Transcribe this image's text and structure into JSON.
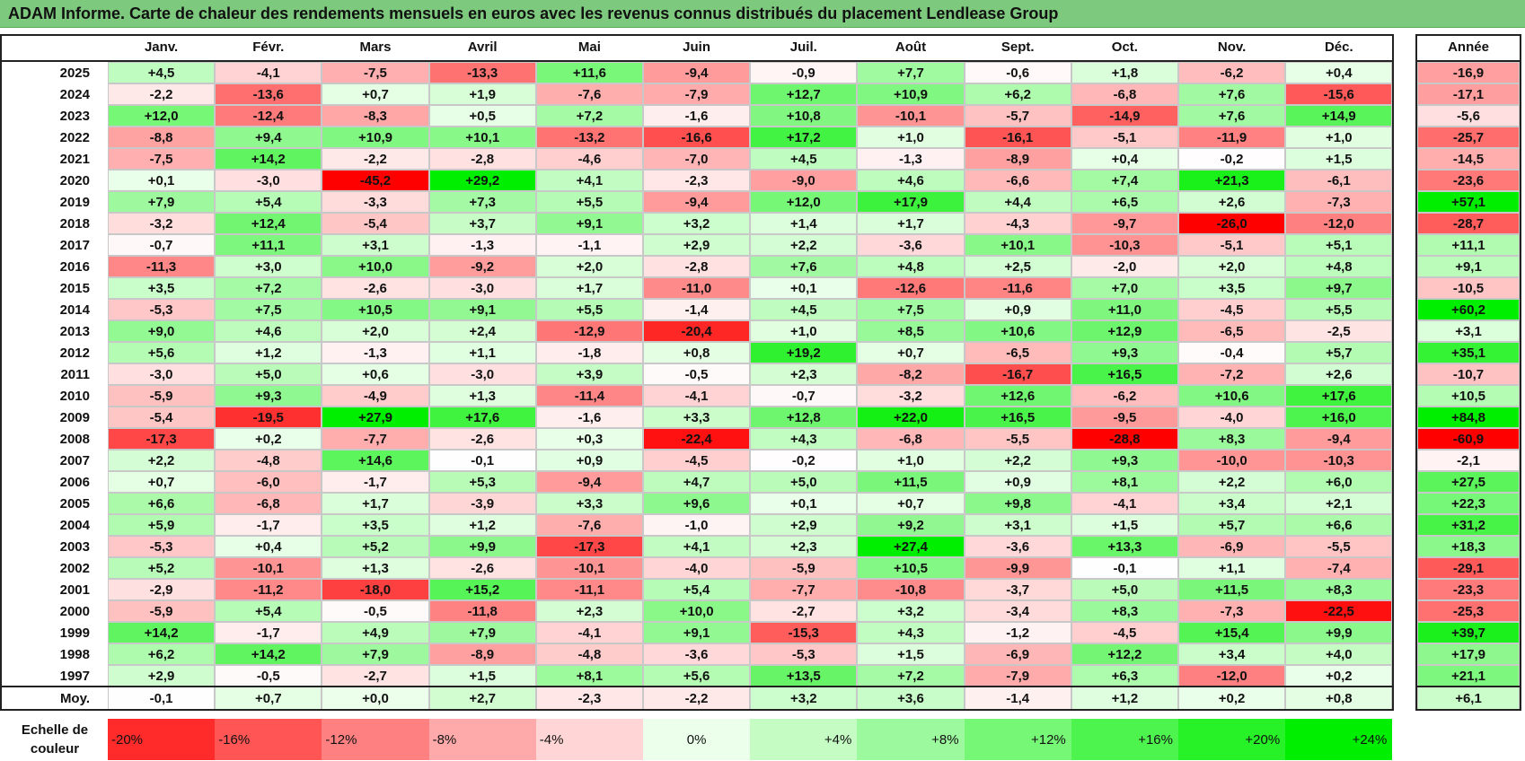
{
  "title": "ADAM Informe. Carte de chaleur des rendements mensuels en euros avec les revenus connus distribués du placement Lendlease Group",
  "colors": {
    "title_bg": "#7dc97d",
    "negative_max": "#ff0000",
    "neutral": "#ffffff",
    "positive_max": "#00ee00"
  },
  "chart_data": {
    "type": "heatmap",
    "title": "ADAM Informe. Carte de chaleur des rendements mensuels en euros avec les revenus connus distribués du placement Lendlease Group",
    "months": [
      "Janv.",
      "Févr.",
      "Mars",
      "Avril",
      "Mai",
      "Juin",
      "Juil.",
      "Août",
      "Sept.",
      "Oct.",
      "Nov.",
      "Déc."
    ],
    "year_header": "Année",
    "rows": [
      {
        "year": "2025",
        "values": [
          "+4,5",
          "-4,1",
          "-7,5",
          "-13,3",
          "+11,6",
          "-9,4",
          "-0,9",
          "+7,7",
          "-0,6",
          "+1,8",
          "-6,2",
          "+0,4"
        ],
        "annual": "-16,9"
      },
      {
        "year": "2024",
        "values": [
          "-2,2",
          "-13,6",
          "+0,7",
          "+1,9",
          "-7,6",
          "-7,9",
          "+12,7",
          "+10,9",
          "+6,2",
          "-6,8",
          "+7,6",
          "-15,6"
        ],
        "annual": "-17,1"
      },
      {
        "year": "2023",
        "values": [
          "+12,0",
          "-12,4",
          "-8,3",
          "+0,5",
          "+7,2",
          "-1,6",
          "+10,8",
          "-10,1",
          "-5,7",
          "-14,9",
          "+7,6",
          "+14,9"
        ],
        "annual": "-5,6"
      },
      {
        "year": "2022",
        "values": [
          "-8,8",
          "+9,4",
          "+10,9",
          "+10,1",
          "-13,2",
          "-16,6",
          "+17,2",
          "+1,0",
          "-16,1",
          "-5,1",
          "-11,9",
          "+1,0"
        ],
        "annual": "-25,7"
      },
      {
        "year": "2021",
        "values": [
          "-7,5",
          "+14,2",
          "-2,2",
          "-2,8",
          "-4,6",
          "-7,0",
          "+4,5",
          "-1,3",
          "-8,9",
          "+0,4",
          "-0,2",
          "+1,5"
        ],
        "annual": "-14,5"
      },
      {
        "year": "2020",
        "values": [
          "+0,1",
          "-3,0",
          "-45,2",
          "+29,2",
          "+4,1",
          "-2,3",
          "-9,0",
          "+4,6",
          "-6,6",
          "+7,4",
          "+21,3",
          "-6,1"
        ],
        "annual": "-23,6"
      },
      {
        "year": "2019",
        "values": [
          "+7,9",
          "+5,4",
          "-3,3",
          "+7,3",
          "+5,5",
          "-9,4",
          "+12,0",
          "+17,9",
          "+4,4",
          "+6,5",
          "+2,6",
          "-7,3"
        ],
        "annual": "+57,1"
      },
      {
        "year": "2018",
        "values": [
          "-3,2",
          "+12,4",
          "-5,4",
          "+3,7",
          "+9,1",
          "+3,2",
          "+1,4",
          "+1,7",
          "-4,3",
          "-9,7",
          "-26,0",
          "-12,0"
        ],
        "annual": "-28,7"
      },
      {
        "year": "2017",
        "values": [
          "-0,7",
          "+11,1",
          "+3,1",
          "-1,3",
          "-1,1",
          "+2,9",
          "+2,2",
          "-3,6",
          "+10,1",
          "-10,3",
          "-5,1",
          "+5,1"
        ],
        "annual": "+11,1"
      },
      {
        "year": "2016",
        "values": [
          "-11,3",
          "+3,0",
          "+10,0",
          "-9,2",
          "+2,0",
          "-2,8",
          "+7,6",
          "+4,8",
          "+2,5",
          "-2,0",
          "+2,0",
          "+4,8"
        ],
        "annual": "+9,1"
      },
      {
        "year": "2015",
        "values": [
          "+3,5",
          "+7,2",
          "-2,6",
          "-3,0",
          "+1,7",
          "-11,0",
          "+0,1",
          "-12,6",
          "-11,6",
          "+7,0",
          "+3,5",
          "+9,7"
        ],
        "annual": "-10,5"
      },
      {
        "year": "2014",
        "values": [
          "-5,3",
          "+7,5",
          "+10,5",
          "+9,1",
          "+5,5",
          "-1,4",
          "+4,5",
          "+7,5",
          "+0,9",
          "+11,0",
          "-4,5",
          "+5,5"
        ],
        "annual": "+60,2"
      },
      {
        "year": "2013",
        "values": [
          "+9,0",
          "+4,6",
          "+2,0",
          "+2,4",
          "-12,9",
          "-20,4",
          "+1,0",
          "+8,5",
          "+10,6",
          "+12,9",
          "-6,5",
          "-2,5"
        ],
        "annual": "+3,1"
      },
      {
        "year": "2012",
        "values": [
          "+5,6",
          "+1,2",
          "-1,3",
          "+1,1",
          "-1,8",
          "+0,8",
          "+19,2",
          "+0,7",
          "-6,5",
          "+9,3",
          "-0,4",
          "+5,7"
        ],
        "annual": "+35,1"
      },
      {
        "year": "2011",
        "values": [
          "-3,0",
          "+5,0",
          "+0,6",
          "-3,0",
          "+3,9",
          "-0,5",
          "+2,3",
          "-8,2",
          "-16,7",
          "+16,5",
          "-7,2",
          "+2,6"
        ],
        "annual": "-10,7"
      },
      {
        "year": "2010",
        "values": [
          "-5,9",
          "+9,3",
          "-4,9",
          "+1,3",
          "-11,4",
          "-4,1",
          "-0,7",
          "-3,2",
          "+12,6",
          "-6,2",
          "+10,6",
          "+17,6"
        ],
        "annual": "+10,5"
      },
      {
        "year": "2009",
        "values": [
          "-5,4",
          "-19,5",
          "+27,9",
          "+17,6",
          "-1,6",
          "+3,3",
          "+12,8",
          "+22,0",
          "+16,5",
          "-9,5",
          "-4,0",
          "+16,0"
        ],
        "annual": "+84,8"
      },
      {
        "year": "2008",
        "values": [
          "-17,3",
          "+0,2",
          "-7,7",
          "-2,6",
          "+0,3",
          "-22,4",
          "+4,3",
          "-6,8",
          "-5,5",
          "-28,8",
          "+8,3",
          "-9,4"
        ],
        "annual": "-60,9"
      },
      {
        "year": "2007",
        "values": [
          "+2,2",
          "-4,8",
          "+14,6",
          "-0,1",
          "+0,9",
          "-4,5",
          "-0,2",
          "+1,0",
          "+2,2",
          "+9,3",
          "-10,0",
          "-10,3"
        ],
        "annual": "-2,1"
      },
      {
        "year": "2006",
        "values": [
          "+0,7",
          "-6,0",
          "-1,7",
          "+5,3",
          "-9,4",
          "+4,7",
          "+5,0",
          "+11,5",
          "+0,9",
          "+8,1",
          "+2,2",
          "+6,0"
        ],
        "annual": "+27,5"
      },
      {
        "year": "2005",
        "values": [
          "+6,6",
          "-6,8",
          "+1,7",
          "-3,9",
          "+3,3",
          "+9,6",
          "+0,1",
          "+0,7",
          "+9,8",
          "-4,1",
          "+3,4",
          "+2,1"
        ],
        "annual": "+22,3"
      },
      {
        "year": "2004",
        "values": [
          "+5,9",
          "-1,7",
          "+3,5",
          "+1,2",
          "-7,6",
          "-1,0",
          "+2,9",
          "+9,2",
          "+3,1",
          "+1,5",
          "+5,7",
          "+6,6"
        ],
        "annual": "+31,2"
      },
      {
        "year": "2003",
        "values": [
          "-5,3",
          "+0,4",
          "+5,2",
          "+9,9",
          "-17,3",
          "+4,1",
          "+2,3",
          "+27,4",
          "-3,6",
          "+13,3",
          "-6,9",
          "-5,5"
        ],
        "annual": "+18,3"
      },
      {
        "year": "2002",
        "values": [
          "+5,2",
          "-10,1",
          "+1,3",
          "-2,6",
          "-10,1",
          "-4,0",
          "-5,9",
          "+10,5",
          "-9,9",
          "-0,1",
          "+1,1",
          "-7,4"
        ],
        "annual": "-29,1"
      },
      {
        "year": "2001",
        "values": [
          "-2,9",
          "-11,2",
          "-18,0",
          "+15,2",
          "-11,1",
          "+5,4",
          "-7,7",
          "-10,8",
          "-3,7",
          "+5,0",
          "+11,5",
          "+8,3"
        ],
        "annual": "-23,3"
      },
      {
        "year": "2000",
        "values": [
          "-5,9",
          "+5,4",
          "-0,5",
          "-11,8",
          "+2,3",
          "+10,0",
          "-2,7",
          "+3,2",
          "-3,4",
          "+8,3",
          "-7,3",
          "-22,5"
        ],
        "annual": "-25,3"
      },
      {
        "year": "1999",
        "values": [
          "+14,2",
          "-1,7",
          "+4,9",
          "+7,9",
          "-4,1",
          "+9,1",
          "-15,3",
          "+4,3",
          "-1,2",
          "-4,5",
          "+15,4",
          "+9,9"
        ],
        "annual": "+39,7"
      },
      {
        "year": "1998",
        "values": [
          "+6,2",
          "+14,2",
          "+7,9",
          "-8,9",
          "-4,8",
          "-3,6",
          "-5,3",
          "+1,5",
          "-6,9",
          "+12,2",
          "+3,4",
          "+4,0"
        ],
        "annual": "+17,9"
      },
      {
        "year": "1997",
        "values": [
          "+2,9",
          "-0,5",
          "-2,7",
          "+1,5",
          "+8,1",
          "+5,6",
          "+13,5",
          "+7,2",
          "-7,9",
          "+6,3",
          "-12,0",
          "+0,2"
        ],
        "annual": "+21,1"
      }
    ],
    "average": {
      "label": "Moy.",
      "values": [
        "-0,1",
        "+0,7",
        "+0,0",
        "+2,7",
        "-2,3",
        "-2,2",
        "+3,2",
        "+3,6",
        "-1,4",
        "+1,2",
        "+0,2",
        "+0,8"
      ],
      "annual": "+6,1"
    },
    "scale": {
      "label_line1": "Echelle de",
      "label_line2": "couleur",
      "steps": [
        "-20%",
        "-16%",
        "-12%",
        "-8%",
        "-4%",
        "0%",
        "+4%",
        "+8%",
        "+12%",
        "+16%",
        "+20%",
        "+24%"
      ]
    }
  }
}
